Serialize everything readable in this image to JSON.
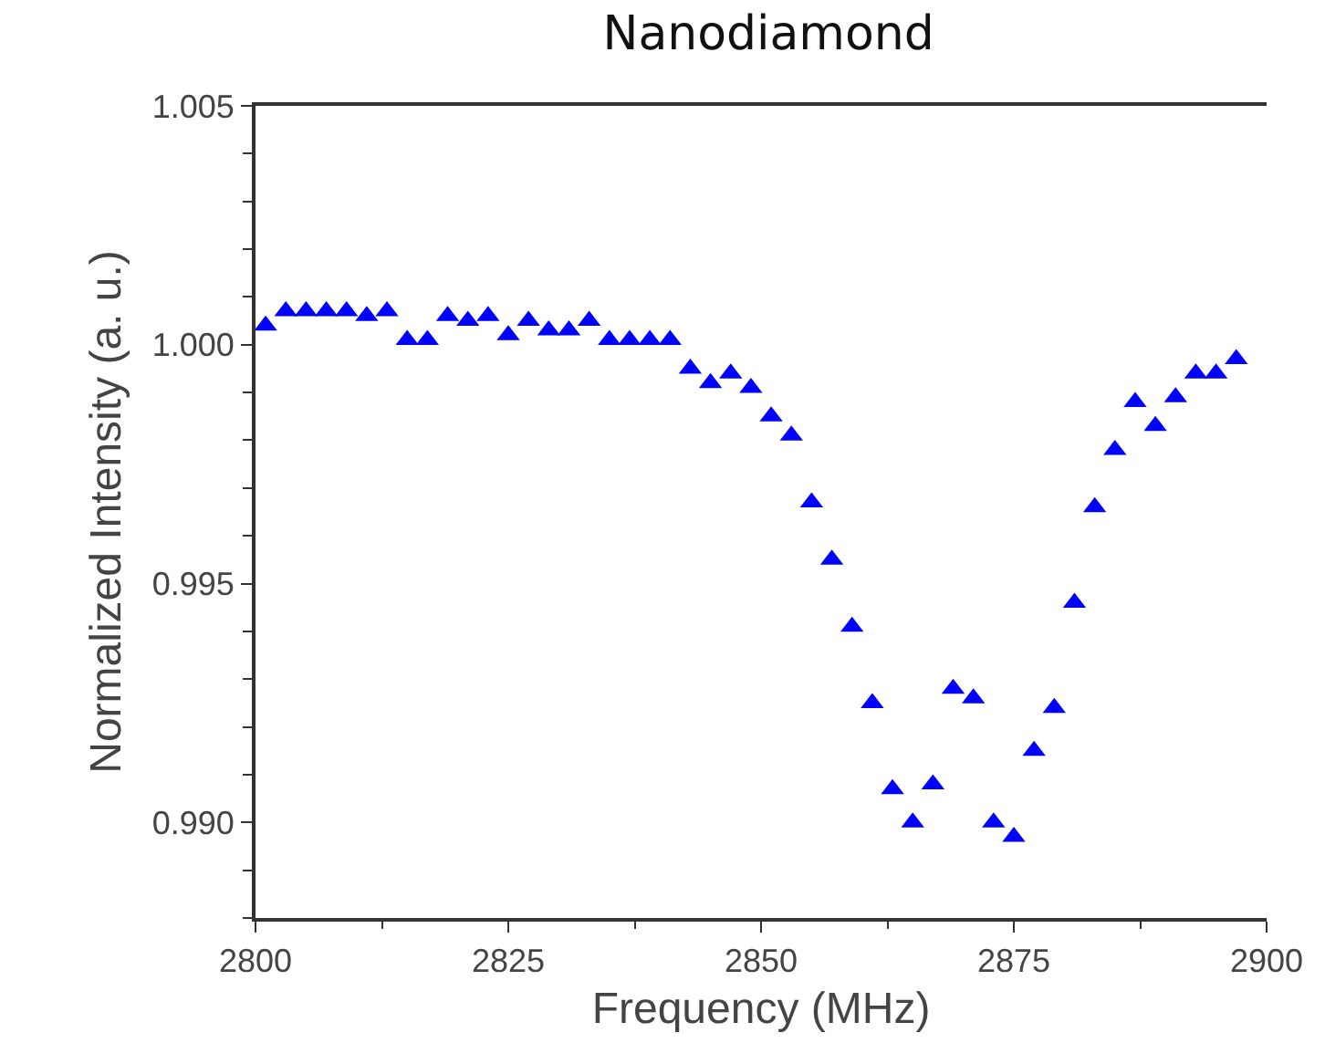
{
  "chart_data": {
    "type": "scatter",
    "title": "Nanodiamond",
    "xlabel": "Frequency (MHz)",
    "ylabel": "Normalized Intensity (a. u.)",
    "x": [
      2801,
      2803,
      2805,
      2807,
      2809,
      2811,
      2813,
      2815,
      2817,
      2819,
      2821,
      2823,
      2825,
      2827,
      2829,
      2831,
      2833,
      2835,
      2837,
      2839,
      2841,
      2843,
      2845,
      2847,
      2849,
      2851,
      2853,
      2855,
      2857,
      2859,
      2861,
      2863,
      2865,
      2867,
      2869,
      2871,
      2873,
      2875,
      2877,
      2879,
      2881,
      2883,
      2885,
      2887,
      2889,
      2891,
      2893,
      2895,
      2897
    ],
    "series": [
      {
        "color": "#0000ff",
        "values": [
          1.0004,
          1.0007,
          1.0007,
          1.0007,
          1.0007,
          1.0006,
          1.0007,
          1.0001,
          1.0001,
          1.0006,
          1.0005,
          1.0006,
          1.0002,
          1.0005,
          1.0003,
          1.0003,
          1.0005,
          1.0001,
          1.0001,
          1.0001,
          1.0001,
          0.9995,
          0.9992,
          0.9994,
          0.9991,
          0.9985,
          0.9981,
          0.9967,
          0.9955,
          0.9941,
          0.9925,
          0.9907,
          0.99,
          0.9908,
          0.9928,
          0.9926,
          0.99,
          0.9897,
          0.9915,
          0.9924,
          0.9946,
          0.9966,
          0.9978,
          0.9988,
          0.9983,
          0.9989,
          0.9994,
          0.9994,
          0.9997
        ]
      }
    ],
    "marker": "triangle",
    "xlim": [
      2800,
      2900
    ],
    "xticks": [
      2800,
      2825,
      2850,
      2875,
      2900
    ],
    "ylim": [
      0.988,
      1.005
    ],
    "yticks": [
      1.005,
      {
        "value": 1.0,
        "label": "1.000"
      },
      0.995,
      {
        "value": 0.99,
        "label": "0.990"
      }
    ],
    "legend": false
  }
}
